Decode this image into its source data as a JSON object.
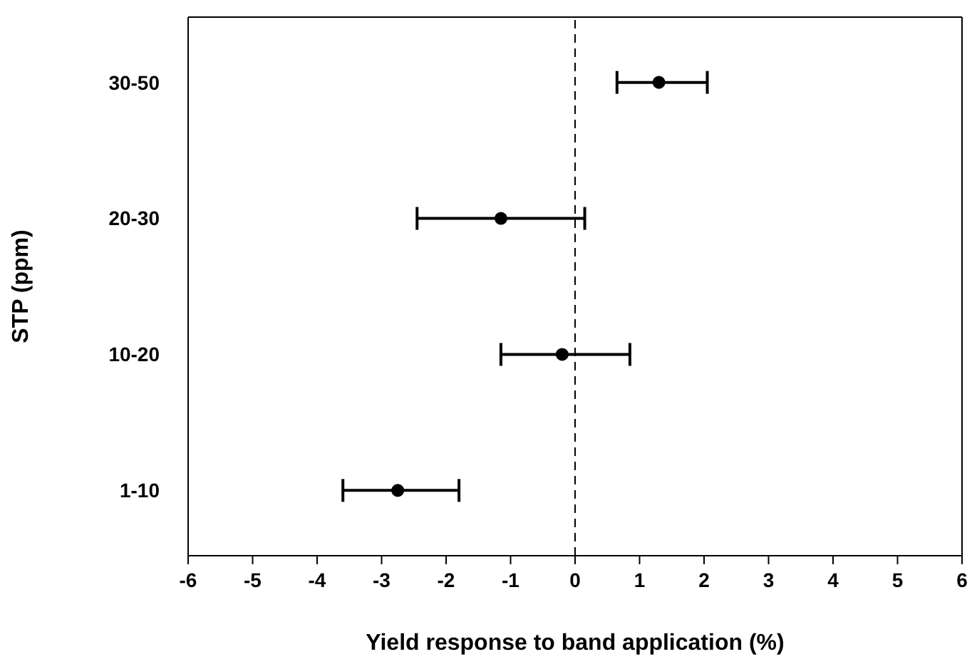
{
  "chart_data": {
    "type": "scatter",
    "orientation": "horizontal",
    "xlabel": "Yield response to band application (%)",
    "ylabel": "STP (ppm)",
    "categories": [
      "30-50",
      "20-30",
      "10-20",
      "1-10"
    ],
    "series": [
      {
        "color": "#000000",
        "values": [
          1.3,
          -1.15,
          -0.2,
          -2.75
        ],
        "errors": [
          [
            0.65,
            2.05
          ],
          [
            -2.45,
            0.15
          ],
          [
            -1.15,
            0.85
          ],
          [
            -3.6,
            -1.8
          ]
        ]
      }
    ],
    "xlim": [
      -6,
      6
    ],
    "xticks": [
      -6,
      -5,
      -4,
      -3,
      -2,
      -1,
      0,
      1,
      2,
      3,
      4,
      5,
      6
    ],
    "ref_lines": [
      {
        "axis": "x",
        "value": 0,
        "line_style": "dashed",
        "color": "#000000"
      }
    ],
    "marker": "circle"
  }
}
